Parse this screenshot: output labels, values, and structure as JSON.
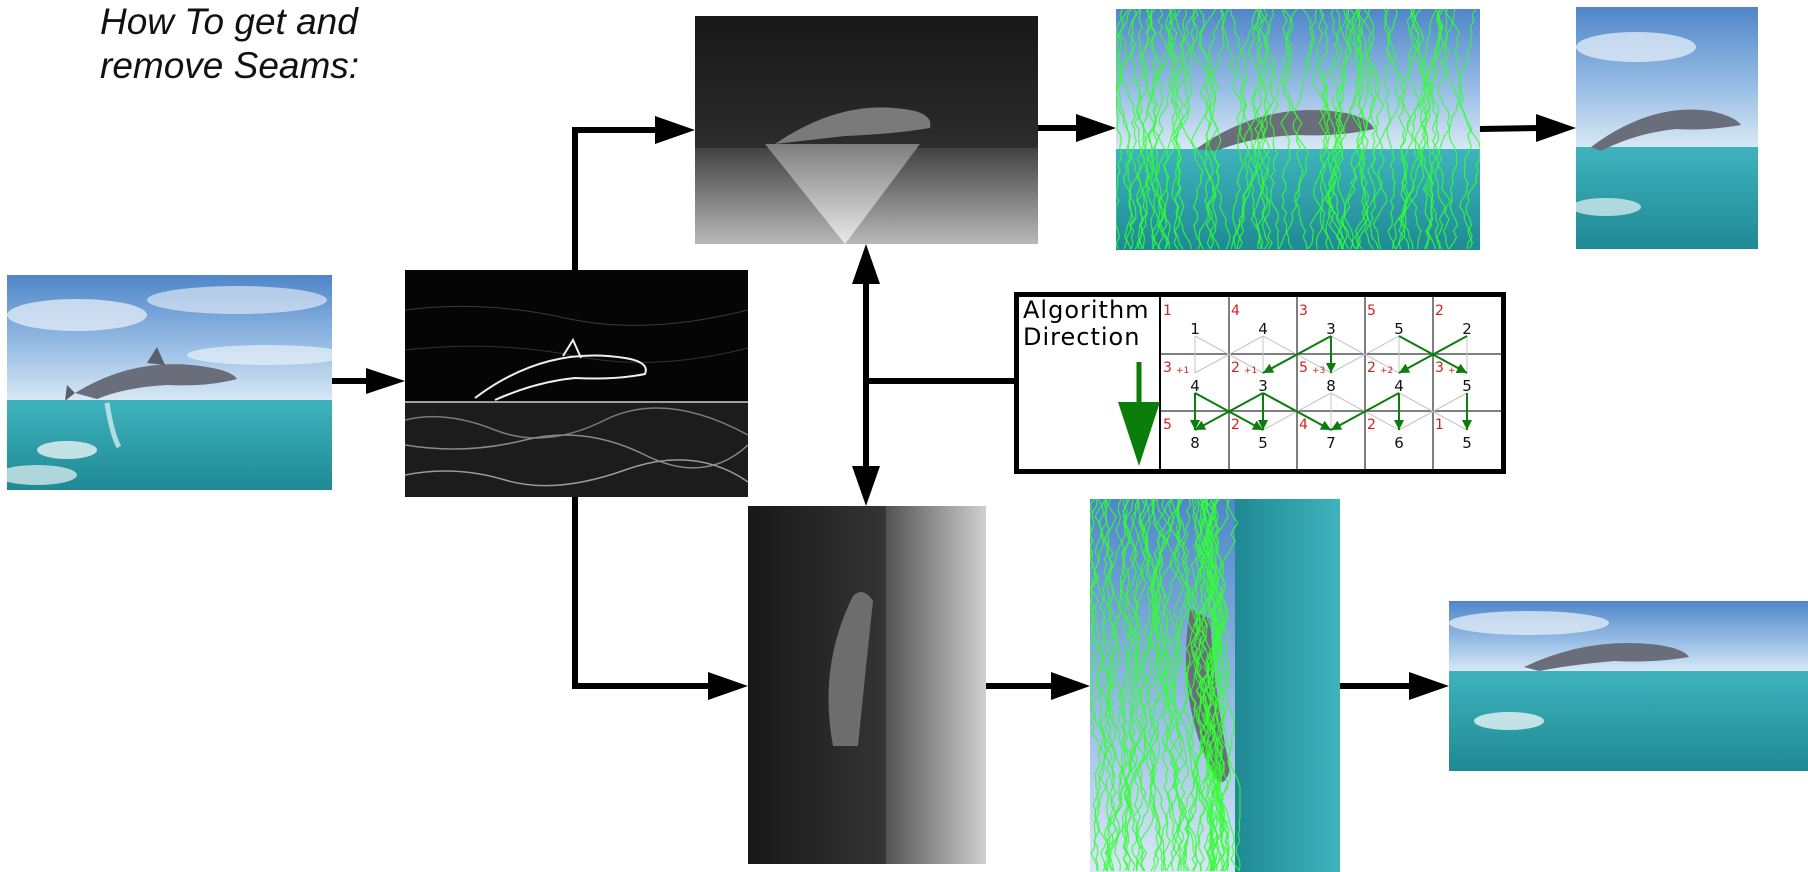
{
  "title": {
    "line1": "How To get and",
    "line2": "remove Seams:"
  },
  "legend_box": {
    "label_line1": "Algorithm",
    "label_line2": "Direction"
  },
  "grid": {
    "red_top": [
      "1",
      "4",
      "3",
      "5",
      "2"
    ],
    "row1": [
      "1",
      "4",
      "3",
      "5",
      "2"
    ],
    "red_mid": [
      "3",
      "2",
      "5",
      "2",
      "3"
    ],
    "red_mid_sub": [
      "+1",
      "+1",
      "+3",
      "+2",
      "+2"
    ],
    "row2": [
      "4",
      "3",
      "8",
      "4",
      "5"
    ],
    "red_bottom": [
      "5",
      "2",
      "4",
      "2",
      "1"
    ],
    "row3": [
      "8",
      "5",
      "7",
      "6",
      "5"
    ]
  },
  "colors": {
    "arrow": "#000000",
    "seam": "#33ff33",
    "path_arrow": "#0a7d0a",
    "grid_red": "#d42020",
    "sky": "#6f9fd6",
    "sea": "#2aa3ad"
  }
}
